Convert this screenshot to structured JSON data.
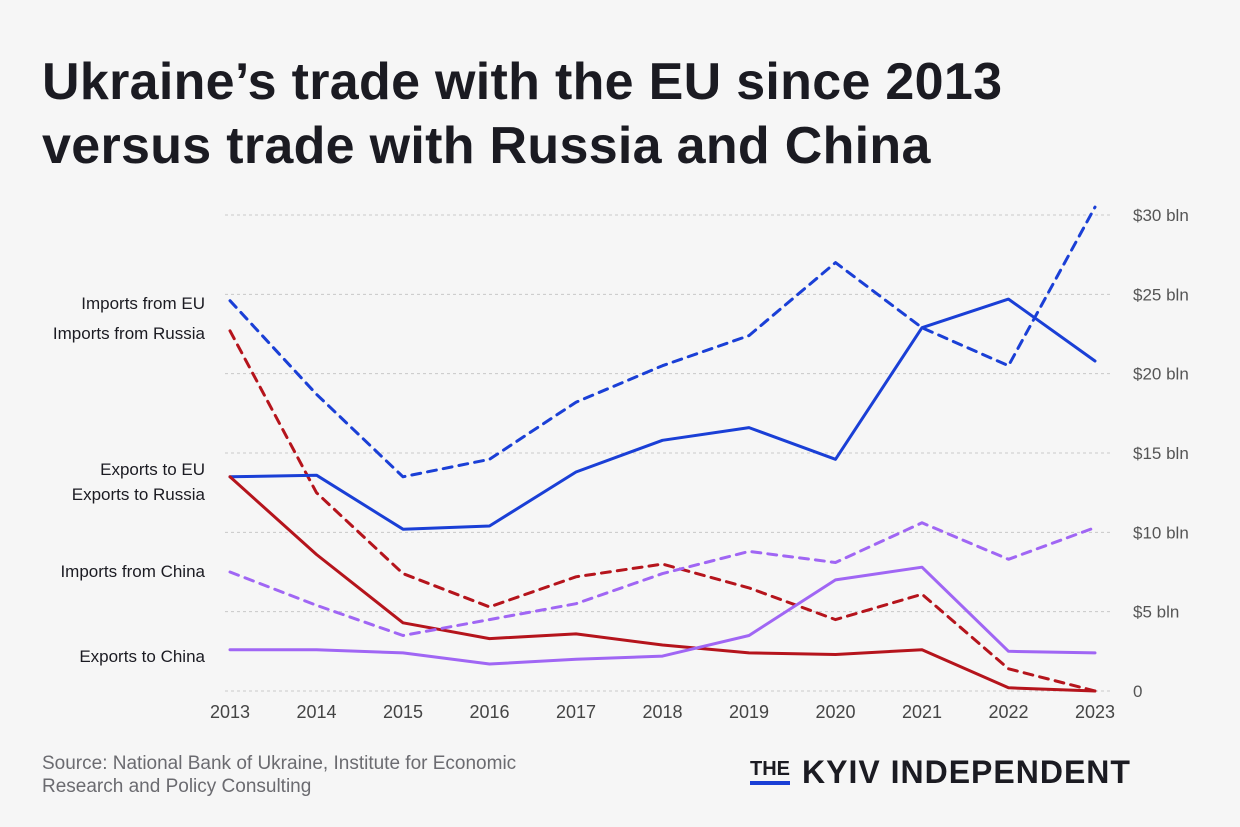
{
  "title_lines": [
    "Ukraine’s trade with the EU since 2013",
    "versus trade with Russia and China"
  ],
  "source": {
    "lines": [
      "Source: National Bank of Ukraine, Institute for Economic",
      "Research and Policy Consulting"
    ]
  },
  "logo": {
    "the": "THE",
    "name": "KYIV INDEPENDENT",
    "accent_color": "#1a3fd6"
  },
  "chart_data": {
    "type": "line",
    "title": "Ukraine’s trade with the EU since 2013 versus trade with Russia and China",
    "x": [
      2013,
      2014,
      2015,
      2016,
      2017,
      2018,
      2019,
      2020,
      2021,
      2022,
      2023
    ],
    "ylim": [
      0,
      30
    ],
    "y_ticks": [
      {
        "value": 0,
        "label": "0"
      },
      {
        "value": 5,
        "label": "$5 bln"
      },
      {
        "value": 10,
        "label": "$10 bln"
      },
      {
        "value": 15,
        "label": "$15 bln"
      },
      {
        "value": 20,
        "label": "$20 bln"
      },
      {
        "value": 25,
        "label": "$25 bln"
      },
      {
        "value": 30,
        "label": "$30 bln"
      }
    ],
    "y_axis_side": "right",
    "grid": true,
    "grid_style": "dotted horizontal",
    "legend": "series labels at left of plot",
    "series": [
      {
        "name": "Imports from EU",
        "color": "#1a3fd6",
        "dashed": true,
        "values": [
          24.6,
          18.7,
          13.5,
          14.6,
          18.2,
          20.5,
          22.4,
          27.0,
          22.9,
          20.5,
          30.5
        ]
      },
      {
        "name": "Imports from Russia",
        "color": "#b5141c",
        "dashed": true,
        "values": [
          22.7,
          12.5,
          7.4,
          5.3,
          7.2,
          8.0,
          6.5,
          4.5,
          6.1,
          1.4,
          0
        ]
      },
      {
        "name": "Exports to EU",
        "color": "#1a3fd6",
        "dashed": false,
        "values": [
          13.5,
          13.6,
          10.2,
          10.4,
          13.8,
          15.8,
          16.6,
          14.6,
          22.9,
          24.7,
          20.8
        ]
      },
      {
        "name": "Exports to Russia",
        "color": "#b5141c",
        "dashed": false,
        "values": [
          13.5,
          8.6,
          4.3,
          3.3,
          3.6,
          2.9,
          2.4,
          2.3,
          2.6,
          0.2,
          0
        ]
      },
      {
        "name": "Imports from China",
        "color": "#a066f4",
        "dashed": true,
        "values": [
          7.5,
          5.4,
          3.5,
          4.5,
          5.5,
          7.4,
          8.8,
          8.1,
          10.6,
          8.3,
          10.3
        ]
      },
      {
        "name": "Exports to China",
        "color": "#a066f4",
        "dashed": false,
        "values": [
          2.6,
          2.6,
          2.4,
          1.7,
          2.0,
          2.2,
          3.5,
          7.0,
          7.8,
          2.5,
          2.4
        ]
      }
    ]
  }
}
